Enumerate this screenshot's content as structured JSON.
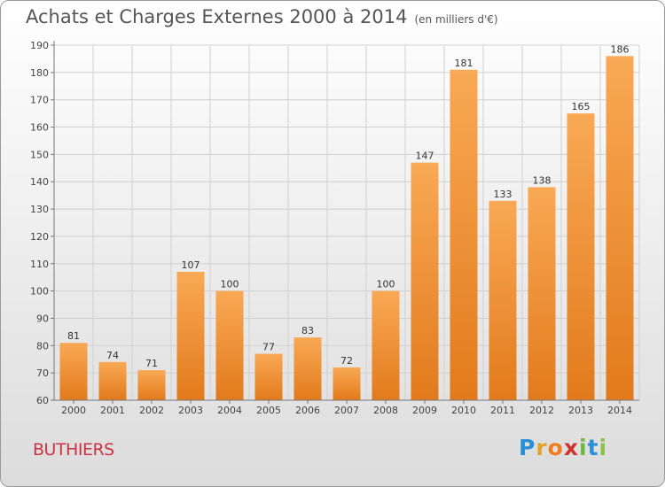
{
  "header": {
    "title": "Achats et Charges Externes 2000 à 2014",
    "subtitle": "(en milliers d'€)"
  },
  "footer": {
    "place": "BUTHIERS",
    "logo_letters": [
      {
        "ch": "P",
        "color": "#2a8fd6"
      },
      {
        "ch": "r",
        "color": "#e2a52a"
      },
      {
        "ch": "o",
        "color": "#f07c1d"
      },
      {
        "ch": "x",
        "color": "#d0332f"
      },
      {
        "ch": "i",
        "color": "#6cb83a"
      },
      {
        "ch": "t",
        "color": "#2a8fd6"
      },
      {
        "ch": "i",
        "color": "#8bc34a"
      }
    ]
  },
  "colors": {
    "bar_top": "#f9a955",
    "bar_bottom": "#e27a1c",
    "grid": "#d0d0d0"
  },
  "chart_data": {
    "type": "bar",
    "title": "Achats et Charges Externes 2000 à 2014",
    "subtitle": "(en milliers d'€)",
    "xlabel": "",
    "ylabel": "",
    "ylim": [
      60,
      190
    ],
    "yticks": [
      60,
      70,
      80,
      90,
      100,
      110,
      120,
      130,
      140,
      150,
      160,
      170,
      180,
      190
    ],
    "grid": true,
    "categories": [
      "2000",
      "2001",
      "2002",
      "2003",
      "2004",
      "2005",
      "2006",
      "2007",
      "2008",
      "2009",
      "2010",
      "2011",
      "2012",
      "2013",
      "2014"
    ],
    "values": [
      81,
      74,
      71,
      107,
      100,
      77,
      83,
      72,
      100,
      147,
      181,
      133,
      138,
      165,
      186
    ]
  }
}
